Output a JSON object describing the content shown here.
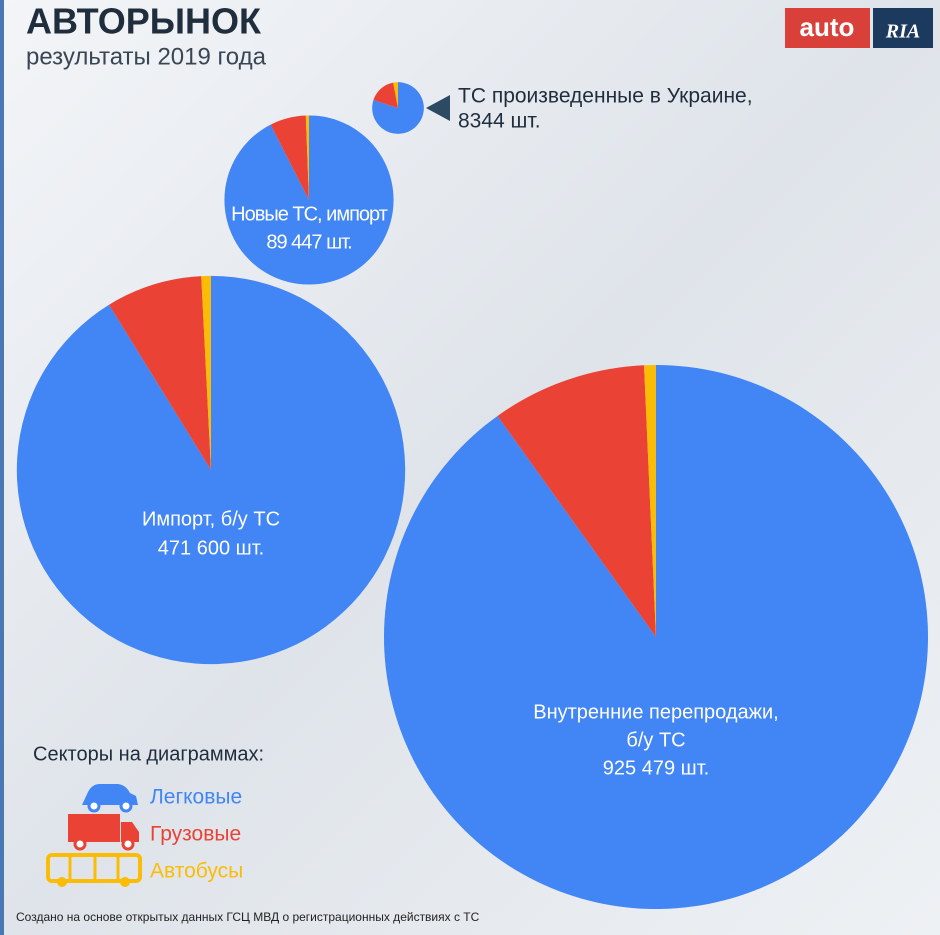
{
  "title": "АВТОРЫНОК",
  "subtitle": "результаты 2019 года",
  "logo": {
    "left": "auto",
    "right": "RIA"
  },
  "legend": {
    "title": "Секторы на диаграммах:",
    "categories": [
      "Легковые",
      "Грузовые",
      "Автобусы"
    ],
    "colors": [
      "#4285f4",
      "#ea4335",
      "#fbbc05"
    ]
  },
  "footnote": "Создано  на основе открытых данных ГСЦ МВД о регистрационных действиях с ТС",
  "chart_data": [
    {
      "type": "pie",
      "label": [
        "ТС произведенные в Украине,"
      ],
      "total": 8344,
      "total_label": "8344 шт.",
      "values": [
        80,
        17,
        3
      ]
    },
    {
      "type": "pie",
      "label": [
        "Новые ТС, импорт"
      ],
      "total": 89447,
      "total_label": "89 447 шт.",
      "values": [
        92.5,
        6.9,
        0.6
      ]
    },
    {
      "type": "pie",
      "label": [
        "Импорт, б/у ТС"
      ],
      "total": 471600,
      "total_label": "471 600 шт.",
      "values": [
        91.2,
        8,
        0.8
      ]
    },
    {
      "type": "pie",
      "label": [
        "Внутренние перепродажи,",
        "б/у ТС"
      ],
      "total": 925479,
      "total_label": "925 479 шт.",
      "values": [
        90.1,
        9.2,
        0.7
      ]
    }
  ]
}
